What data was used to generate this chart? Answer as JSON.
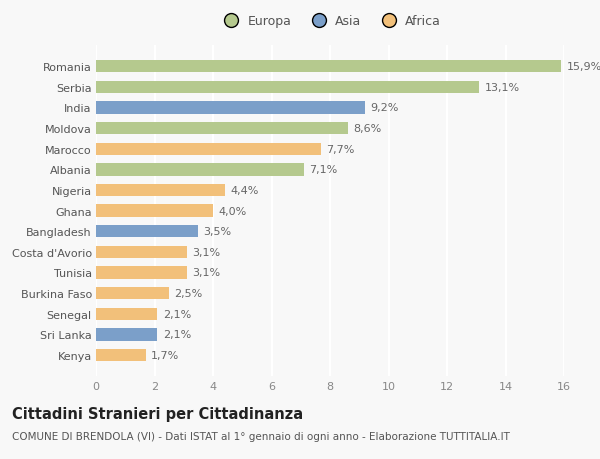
{
  "categories": [
    "Romania",
    "Serbia",
    "India",
    "Moldova",
    "Marocco",
    "Albania",
    "Nigeria",
    "Ghana",
    "Bangladesh",
    "Costa d'Avorio",
    "Tunisia",
    "Burkina Faso",
    "Senegal",
    "Sri Lanka",
    "Kenya"
  ],
  "values": [
    15.9,
    13.1,
    9.2,
    8.6,
    7.7,
    7.1,
    4.4,
    4.0,
    3.5,
    3.1,
    3.1,
    2.5,
    2.1,
    2.1,
    1.7
  ],
  "labels": [
    "15,9%",
    "13,1%",
    "9,2%",
    "8,6%",
    "7,7%",
    "7,1%",
    "4,4%",
    "4,0%",
    "3,5%",
    "3,1%",
    "3,1%",
    "2,5%",
    "2,1%",
    "2,1%",
    "1,7%"
  ],
  "continents": [
    "Europa",
    "Europa",
    "Asia",
    "Europa",
    "Africa",
    "Europa",
    "Africa",
    "Africa",
    "Asia",
    "Africa",
    "Africa",
    "Africa",
    "Africa",
    "Asia",
    "Africa"
  ],
  "colors": {
    "Europa": "#b5c98e",
    "Asia": "#7b9fc9",
    "Africa": "#f2c07a"
  },
  "xlim": [
    0,
    16
  ],
  "xticks": [
    0,
    2,
    4,
    6,
    8,
    10,
    12,
    14,
    16
  ],
  "title": "Cittadini Stranieri per Cittadinanza",
  "subtitle": "COMUNE DI BRENDOLA (VI) - Dati ISTAT al 1° gennaio di ogni anno - Elaborazione TUTTITALIA.IT",
  "background_color": "#f8f8f8",
  "grid_color": "#ffffff",
  "bar_height": 0.6,
  "label_fontsize": 8,
  "title_fontsize": 10.5,
  "subtitle_fontsize": 7.5,
  "ytick_fontsize": 8,
  "xtick_fontsize": 8
}
